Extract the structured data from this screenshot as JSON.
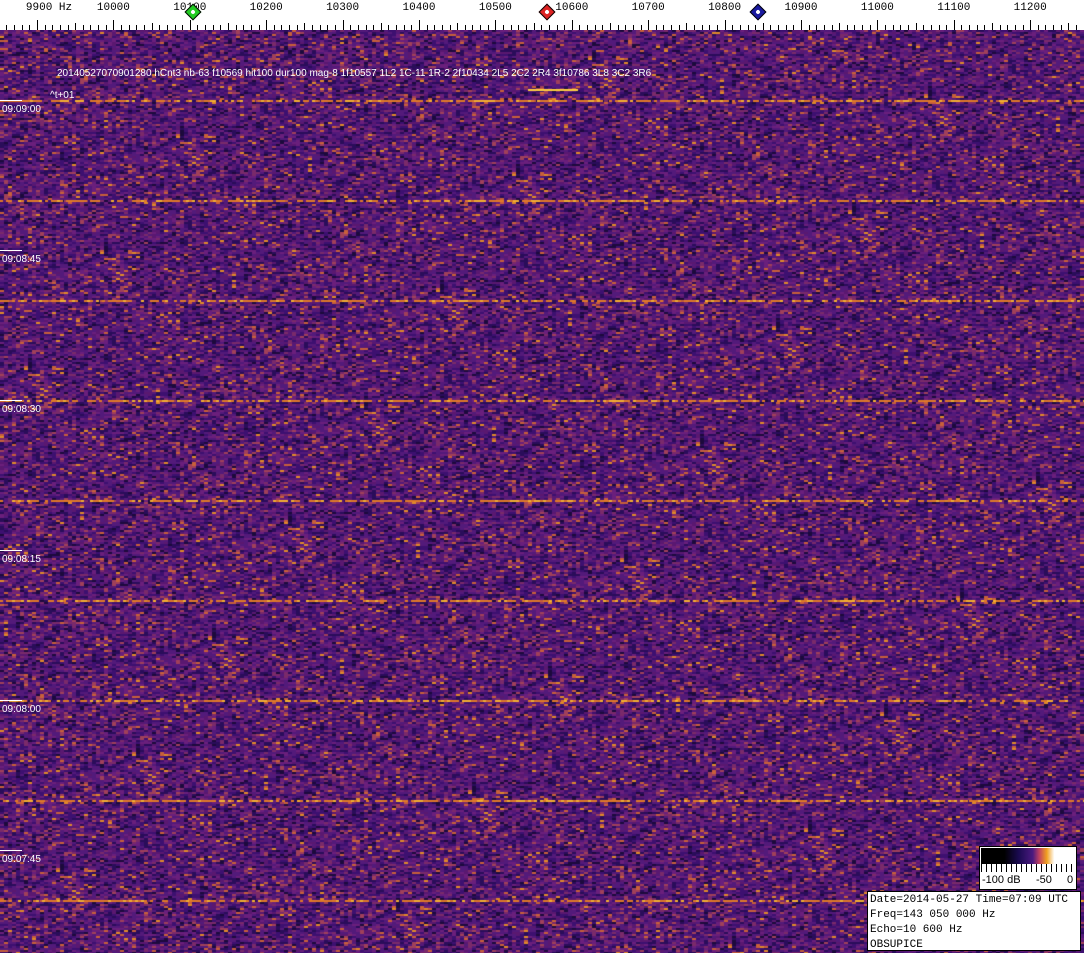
{
  "frequency_axis": {
    "unit": "Hz",
    "labels": [
      "9900 Hz",
      "10000",
      "10100",
      "10200",
      "10300",
      "10400",
      "10500",
      "10600",
      "10700",
      "10800",
      "10900",
      "11000",
      "11100",
      "11200"
    ],
    "values": [
      9900,
      10000,
      10100,
      10200,
      10300,
      10400,
      10500,
      10600,
      10700,
      10800,
      10900,
      11000,
      11100,
      11200
    ],
    "markers": [
      {
        "name": "green-marker",
        "freq": 10104,
        "color": "#22cc22"
      },
      {
        "name": "red-marker",
        "freq": 10567,
        "color": "#dd2222"
      },
      {
        "name": "blue-marker",
        "freq": 10844,
        "color": "#1a1aa0"
      }
    ]
  },
  "detection_info": "20140527070901280 hCnt3 nb-63 f10569 hit100 dur100 mag-8 1f10557 1L2 1C-11 1R-2 2f10434 2L5 2C2 2R4 3f10786 3L8 3C2 3R6",
  "time_offset": "^t+01",
  "time_labels": [
    "09:09:00",
    "09:08:45",
    "09:08:30",
    "09:08:15",
    "09:08:00",
    "09:07:45"
  ],
  "colorbar": {
    "labels": [
      "-100 dB",
      "-50",
      "0"
    ]
  },
  "info_box": {
    "line1": "Date=2014-05-27 Time=07:09 UTC",
    "line2": "Freq=143 050 000 Hz",
    "line3": "Echo=10 600 Hz",
    "line4": "OBSUPICE"
  }
}
